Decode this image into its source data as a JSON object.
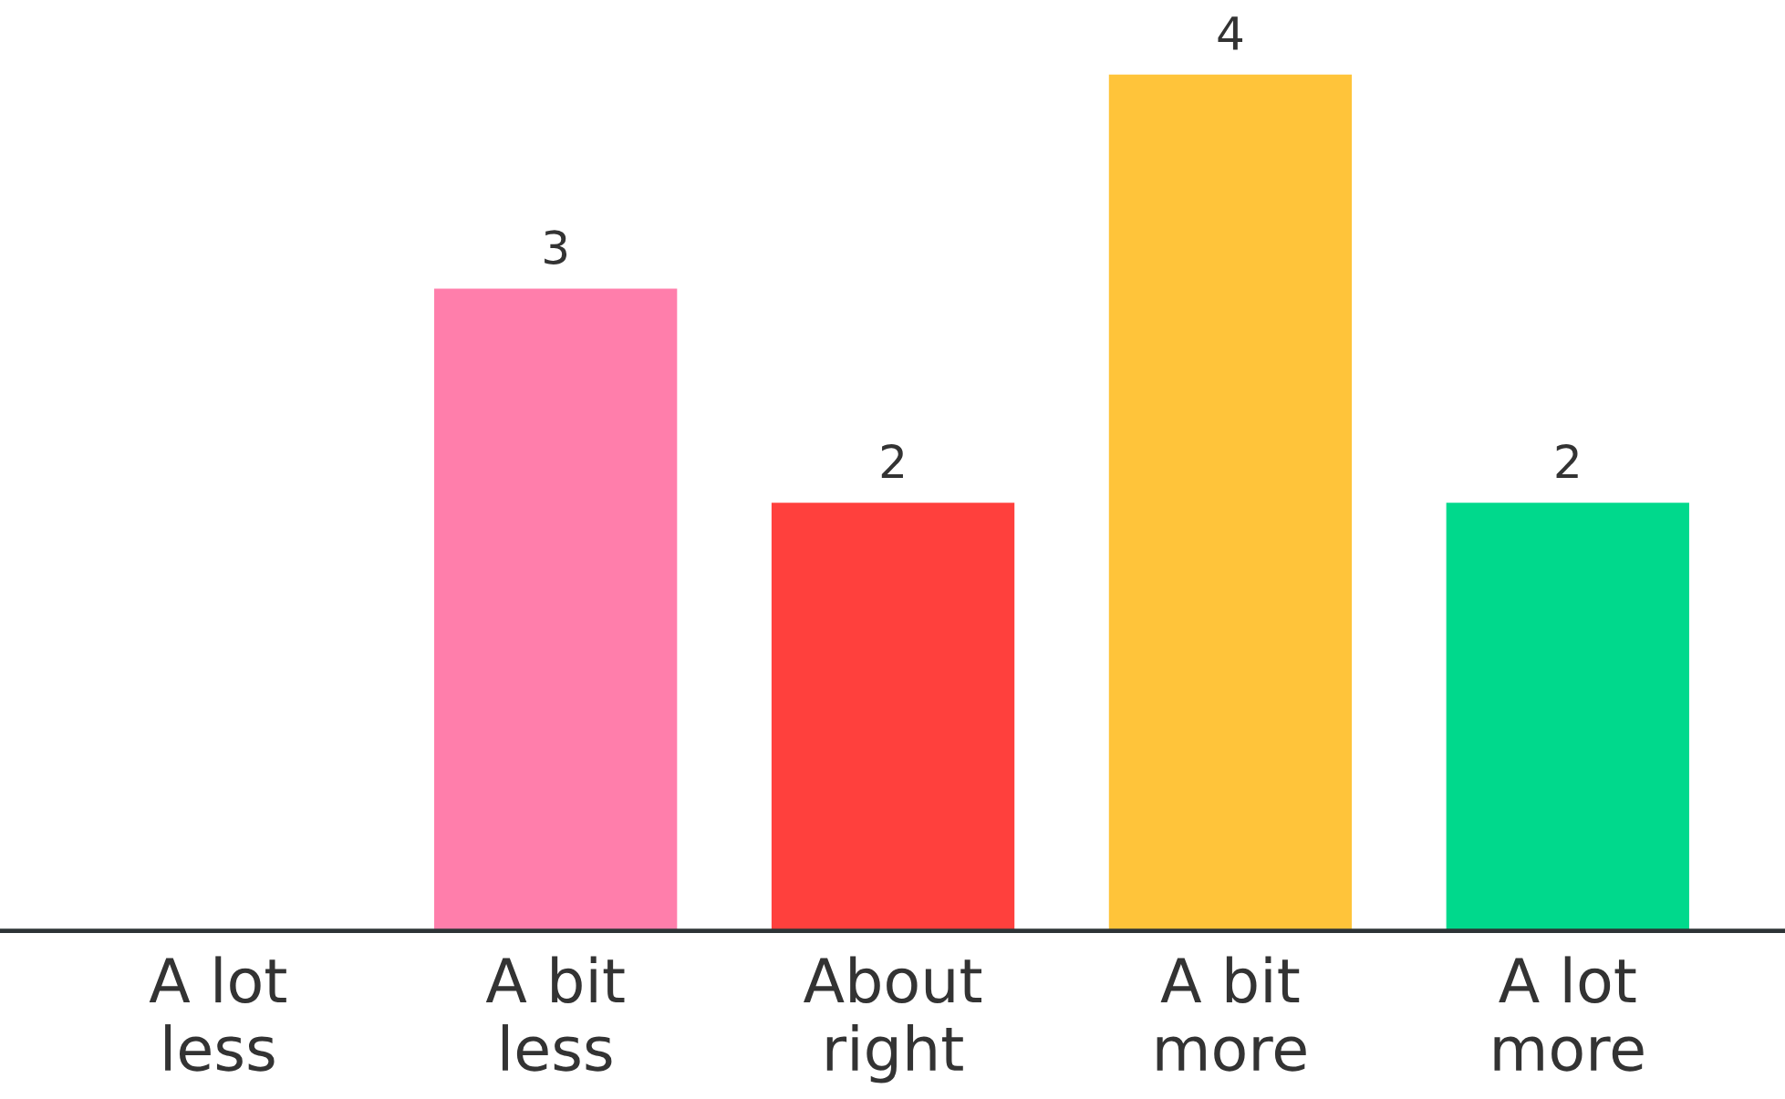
{
  "chart_data": {
    "type": "bar",
    "categories": [
      "A lot\nless",
      "A bit\nless",
      "About\nright",
      "A bit\nmore",
      "A lot\nmore"
    ],
    "values": [
      0,
      3,
      2,
      4,
      2
    ],
    "colors": [
      "#4c8dff",
      "#ff7eab",
      "#ff403d",
      "#ffc43a",
      "#00d98c"
    ],
    "value_labels": [
      null,
      "3",
      "2",
      "4",
      "2"
    ],
    "grid": false
  }
}
